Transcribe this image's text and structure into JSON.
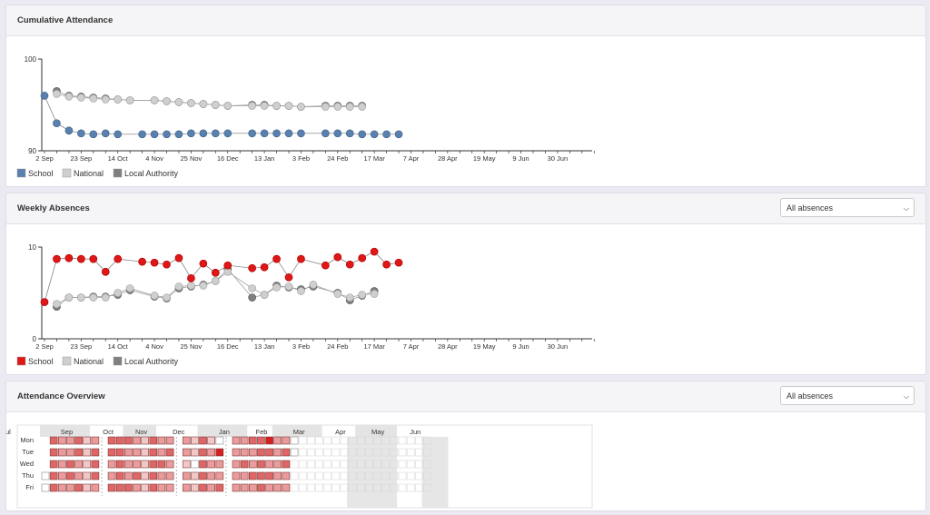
{
  "sections": {
    "cumulative": {
      "title": "Cumulative Attendance"
    },
    "weekly": {
      "title": "Weekly Absences",
      "dropdown": "All absences"
    },
    "overview": {
      "title": "Attendance Overview",
      "dropdown": "All absences"
    }
  },
  "legend": {
    "school": "School",
    "national": "National",
    "local_authority": "Local Authority"
  },
  "colors": {
    "school_cumulative": "#5a80ad",
    "school_weekly": "#e01717",
    "national": "#cfcfcf",
    "local_authority": "#7f7f7f"
  },
  "x_ticks": [
    "2 Sep",
    "23 Sep",
    "14 Oct",
    "4 Nov",
    "25 Nov",
    "16 Dec",
    "13 Jan",
    "3 Feb",
    "24 Feb",
    "17 Mar",
    "7 Apr",
    "28 Apr",
    "19 May",
    "9 Jun",
    "30 Jun"
  ],
  "chart_data": [
    {
      "type": "line",
      "title": "Cumulative Attendance",
      "x_unit": "weeks since 2 Sep",
      "x_ticks": [
        "2 Sep",
        "23 Sep",
        "14 Oct",
        "4 Nov",
        "25 Nov",
        "16 Dec",
        "13 Jan",
        "3 Feb",
        "24 Feb",
        "17 Mar",
        "7 Apr",
        "28 Apr",
        "19 May",
        "9 Jun",
        "30 Jun"
      ],
      "ylim": [
        90,
        100
      ],
      "y_ticks": [
        90,
        100
      ],
      "legend_position": "bottom-left",
      "series": [
        {
          "name": "School",
          "points": [
            [
              0,
              96
            ],
            [
              1,
              93
            ],
            [
              2,
              92.2
            ],
            [
              3,
              91.9
            ],
            [
              4,
              91.8
            ],
            [
              5,
              91.9
            ],
            [
              6,
              91.8
            ],
            [
              8,
              91.8
            ],
            [
              9,
              91.8
            ],
            [
              10,
              91.8
            ],
            [
              11,
              91.8
            ],
            [
              12,
              91.9
            ],
            [
              13,
              91.9
            ],
            [
              14,
              91.9
            ],
            [
              15,
              91.9
            ],
            [
              17,
              91.9
            ],
            [
              18,
              91.9
            ],
            [
              19,
              91.9
            ],
            [
              20,
              91.9
            ],
            [
              21,
              91.9
            ],
            [
              23,
              91.9
            ],
            [
              24,
              91.9
            ],
            [
              25,
              91.9
            ],
            [
              26,
              91.8
            ],
            [
              27,
              91.8
            ],
            [
              28,
              91.8
            ],
            [
              29,
              91.8
            ]
          ]
        },
        {
          "name": "National",
          "points": [
            [
              1,
              96.2
            ],
            [
              2,
              95.9
            ],
            [
              3,
              95.8
            ],
            [
              4,
              95.7
            ],
            [
              5,
              95.6
            ],
            [
              6,
              95.6
            ],
            [
              7,
              95.5
            ],
            [
              9,
              95.5
            ],
            [
              10,
              95.4
            ],
            [
              11,
              95.3
            ],
            [
              12,
              95.2
            ],
            [
              13,
              95.1
            ],
            [
              14,
              95
            ],
            [
              15,
              94.9
            ],
            [
              17,
              94.9
            ],
            [
              18,
              94.9
            ],
            [
              19,
              94.9
            ],
            [
              20,
              94.9
            ],
            [
              21,
              94.8
            ],
            [
              23,
              94.8
            ],
            [
              24,
              94.8
            ],
            [
              25,
              94.8
            ],
            [
              26,
              94.8
            ]
          ]
        },
        {
          "name": "Local Authority",
          "points": [
            [
              1,
              96.5
            ],
            [
              2,
              96
            ],
            [
              3,
              95.9
            ],
            [
              4,
              95.8
            ],
            [
              5,
              95.7
            ],
            [
              6,
              95.6
            ],
            [
              7,
              95.5
            ],
            [
              9,
              95.5
            ],
            [
              10,
              95.4
            ],
            [
              11,
              95.3
            ],
            [
              12,
              95.2
            ],
            [
              13,
              95.1
            ],
            [
              14,
              95
            ],
            [
              15,
              94.9
            ],
            [
              17,
              95
            ],
            [
              18,
              95
            ],
            [
              19,
              94.9
            ],
            [
              20,
              94.9
            ],
            [
              21,
              94.8
            ],
            [
              23,
              94.9
            ],
            [
              24,
              94.9
            ],
            [
              25,
              94.9
            ],
            [
              26,
              94.9
            ]
          ]
        }
      ]
    },
    {
      "type": "line",
      "title": "Weekly Absences",
      "x_unit": "weeks since 2 Sep",
      "x_ticks": [
        "2 Sep",
        "23 Sep",
        "14 Oct",
        "4 Nov",
        "25 Nov",
        "16 Dec",
        "13 Jan",
        "3 Feb",
        "24 Feb",
        "17 Mar",
        "7 Apr",
        "28 Apr",
        "19 May",
        "9 Jun",
        "30 Jun"
      ],
      "ylim": [
        0,
        10
      ],
      "y_ticks": [
        0,
        10
      ],
      "legend_position": "bottom-left",
      "series": [
        {
          "name": "School",
          "points": [
            [
              0,
              4
            ],
            [
              1,
              8.7
            ],
            [
              2,
              8.8
            ],
            [
              3,
              8.7
            ],
            [
              4,
              8.7
            ],
            [
              5,
              7.3
            ],
            [
              6,
              8.7
            ],
            [
              8,
              8.4
            ],
            [
              9,
              8.3
            ],
            [
              10,
              8.1
            ],
            [
              11,
              8.8
            ],
            [
              12,
              6.6
            ],
            [
              13,
              8.2
            ],
            [
              14,
              7.2
            ],
            [
              15,
              8
            ],
            [
              17,
              7.7
            ],
            [
              18,
              7.8
            ],
            [
              19,
              8.7
            ],
            [
              20,
              6.7
            ],
            [
              21,
              8.7
            ],
            [
              23,
              8
            ],
            [
              24,
              8.9
            ],
            [
              25,
              8.1
            ],
            [
              26,
              8.8
            ],
            [
              27,
              9.5
            ],
            [
              28,
              8.1
            ],
            [
              29,
              8.3
            ]
          ]
        },
        {
          "name": "National",
          "points": [
            [
              1,
              3.8
            ],
            [
              2,
              4.5
            ],
            [
              3,
              4.5
            ],
            [
              4,
              4.5
            ],
            [
              5,
              4.5
            ],
            [
              6,
              5
            ],
            [
              7,
              5.5
            ],
            [
              9,
              4.7
            ],
            [
              10,
              4.5
            ],
            [
              11,
              5.7
            ],
            [
              12,
              5.8
            ],
            [
              13,
              5.8
            ],
            [
              14,
              6.3
            ],
            [
              15,
              7.3
            ],
            [
              17,
              5.5
            ],
            [
              18,
              4.8
            ],
            [
              19,
              5.6
            ],
            [
              20,
              5.7
            ],
            [
              21,
              5.2
            ],
            [
              22,
              5.9
            ],
            [
              24,
              4.9
            ],
            [
              25,
              4.5
            ],
            [
              26,
              4.8
            ],
            [
              27,
              4.9
            ]
          ]
        },
        {
          "name": "Local Authority",
          "points": [
            [
              1,
              3.5
            ],
            [
              2,
              4.5
            ],
            [
              3,
              4.5
            ],
            [
              4,
              4.6
            ],
            [
              5,
              4.6
            ],
            [
              6,
              4.8
            ],
            [
              7,
              5.3
            ],
            [
              9,
              4.6
            ],
            [
              10,
              4.4
            ],
            [
              11,
              5.5
            ],
            [
              12,
              5.7
            ],
            [
              13,
              5.9
            ],
            [
              14,
              6.3
            ],
            [
              15,
              7.6
            ],
            [
              17,
              4.5
            ],
            [
              18,
              4.8
            ],
            [
              19,
              5.8
            ],
            [
              20,
              5.6
            ],
            [
              21,
              5.4
            ],
            [
              22,
              5.7
            ],
            [
              24,
              5
            ],
            [
              25,
              4.2
            ],
            [
              26,
              4.7
            ],
            [
              27,
              5.2
            ]
          ]
        }
      ]
    },
    {
      "type": "heatmap",
      "title": "Attendance Overview",
      "rows": [
        "Mon",
        "Tue",
        "Wed",
        "Thu",
        "Fri"
      ],
      "months": [
        "Sep",
        "Oct",
        "Nov",
        "Dec",
        "Jan",
        "Feb",
        "Mar",
        "Apr",
        "May",
        "Jun",
        "Jul"
      ],
      "level_colors": [
        "#ffffff",
        "#f4c7c7",
        "#eb9b9b",
        "#e06565",
        "#d42020"
      ],
      "future_color": "#f4f4f4",
      "weeks": [
        {
          "days": [
            null,
            null,
            null,
            0,
            0
          ]
        },
        {
          "days": [
            3,
            3,
            3,
            3,
            3
          ]
        },
        {
          "days": [
            2,
            2,
            2,
            2,
            2
          ]
        },
        {
          "days": [
            2,
            2,
            3,
            3,
            2
          ]
        },
        {
          "days": [
            3,
            3,
            2,
            2,
            3
          ]
        },
        {
          "days": [
            1,
            1,
            1,
            1,
            1
          ]
        },
        {
          "days": [
            2,
            3,
            3,
            3,
            2
          ]
        },
        {
          "gap": true
        },
        {
          "days": [
            3,
            3,
            2,
            2,
            3
          ]
        },
        {
          "days": [
            3,
            3,
            3,
            3,
            3
          ]
        },
        {
          "days": [
            3,
            2,
            2,
            2,
            3
          ]
        },
        {
          "days": [
            2,
            2,
            2,
            3,
            2
          ]
        },
        {
          "days": [
            1,
            1,
            1,
            1,
            1
          ]
        },
        {
          "days": [
            3,
            3,
            3,
            3,
            3
          ]
        },
        {
          "days": [
            2,
            2,
            3,
            2,
            2
          ]
        },
        {
          "days": [
            2,
            3,
            2,
            2,
            2
          ]
        },
        {
          "gap": true
        },
        {
          "days": [
            2,
            2,
            1,
            2,
            2
          ]
        },
        {
          "days": [
            1,
            1,
            0,
            1,
            1
          ]
        },
        {
          "days": [
            3,
            3,
            3,
            3,
            3
          ]
        },
        {
          "days": [
            1,
            2,
            2,
            2,
            2
          ]
        },
        {
          "days": [
            0,
            4,
            2,
            2,
            3
          ]
        },
        {
          "gap": true
        },
        {
          "days": [
            2,
            2,
            2,
            2,
            2
          ]
        },
        {
          "days": [
            2,
            2,
            3,
            2,
            2
          ]
        },
        {
          "days": [
            3,
            2,
            2,
            3,
            2
          ]
        },
        {
          "days": [
            3,
            3,
            3,
            3,
            3
          ]
        },
        {
          "days": [
            4,
            3,
            2,
            3,
            2
          ]
        },
        {
          "days": [
            2,
            2,
            2,
            2,
            2
          ]
        },
        {
          "days": [
            2,
            3,
            3,
            2,
            2
          ]
        },
        {
          "days": [
            0,
            0,
            -1,
            -1,
            -1
          ]
        },
        {
          "days": [
            -1,
            -1,
            -1,
            -1,
            -1
          ]
        },
        {
          "days": [
            -1,
            -1,
            -1,
            -1,
            -1
          ]
        },
        {
          "days": [
            -1,
            -1,
            -1,
            -1,
            -1
          ]
        },
        {
          "days": [
            -1,
            -1,
            -1,
            -1,
            -1
          ]
        },
        {
          "days": [
            -1,
            -1,
            -1,
            -1,
            -1
          ]
        },
        {
          "days": [
            -1,
            -1,
            -1,
            -1,
            -1
          ]
        },
        {
          "days": [
            -1,
            -1,
            -1,
            -1,
            -1
          ]
        },
        {
          "days": [
            -1,
            -1,
            -1,
            -1,
            -1
          ]
        },
        {
          "days": [
            -1,
            -1,
            -1,
            -1,
            -1
          ]
        },
        {
          "days": [
            -1,
            -1,
            -1,
            -1,
            -1
          ]
        },
        {
          "days": [
            -1,
            -1,
            -1,
            -1,
            -1
          ]
        },
        {
          "days": [
            -1,
            -1,
            -1,
            -1,
            -1
          ]
        },
        {
          "days": [
            -1,
            -1,
            -1,
            -1,
            -1
          ]
        },
        {
          "days": [
            -1,
            -1,
            -1,
            -1,
            -1
          ]
        },
        {
          "days": [
            -1,
            -1,
            -1,
            -1,
            -1
          ]
        },
        {
          "days": [
            -1,
            -1,
            -1,
            -1,
            -1
          ]
        }
      ]
    }
  ]
}
